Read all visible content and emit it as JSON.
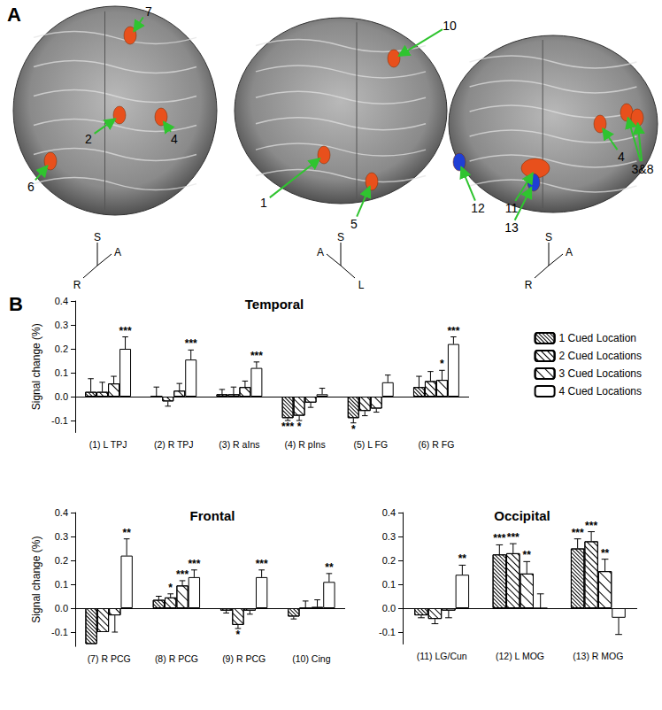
{
  "panel_a": {
    "label": "A",
    "views": [
      {
        "regions": [
          {
            "label": "7",
            "color": "#e8501c"
          },
          {
            "label": "2",
            "color": "#e8501c"
          },
          {
            "label": "4",
            "color": "#e8501c"
          },
          {
            "label": "6",
            "color": "#e8501c"
          }
        ],
        "axes": [
          "S",
          "A",
          "R"
        ]
      },
      {
        "regions": [
          {
            "label": "10",
            "color": "#e8501c"
          },
          {
            "label": "1",
            "color": "#e8501c"
          },
          {
            "label": "5",
            "color": "#e8501c"
          }
        ],
        "axes": [
          "S",
          "A",
          "L"
        ]
      },
      {
        "regions": [
          {
            "label": "12",
            "color": "#1f3fd4"
          },
          {
            "label": "11",
            "color": "#e8501c"
          },
          {
            "label": "13",
            "color": "#1f3fd4"
          },
          {
            "label": "4",
            "color": "#e8501c"
          },
          {
            "label": "3&8",
            "color": "#e8501c"
          }
        ],
        "axes": [
          "S",
          "A",
          "R"
        ]
      }
    ]
  },
  "panel_b_label": "B",
  "chart_data": [
    {
      "type": "bar",
      "title": "Temporal",
      "y_label": "Signal change (%)",
      "categories": [
        "(1) L TPJ",
        "(2) R TPJ",
        "(3) R aIns",
        "(4) R pIns",
        "(5) L FG",
        "(6) R FG"
      ],
      "series": [
        {
          "name": "1 Cued Location",
          "color": "#ffffff",
          "values": [
            0.02,
            0.0,
            0.01,
            -0.09,
            -0.09,
            0.04
          ],
          "errors": [
            0.055,
            0.04,
            0.02,
            0.01,
            0.02,
            0.045
          ],
          "significance": [
            null,
            null,
            null,
            "***",
            "*",
            null
          ]
        },
        {
          "name": "2 Cued Locations",
          "color": "#ffffff",
          "values": [
            0.02,
            -0.02,
            0.01,
            -0.08,
            -0.06,
            0.065
          ],
          "errors": [
            0.04,
            0.02,
            0.03,
            0.02,
            0.02,
            0.04
          ],
          "significance": [
            null,
            null,
            null,
            "*",
            null,
            null
          ]
        },
        {
          "name": "3 Cued Locations",
          "color": "#ffffff",
          "values": [
            0.055,
            0.025,
            0.04,
            -0.025,
            -0.05,
            0.07
          ],
          "errors": [
            0.03,
            0.03,
            0.025,
            0.02,
            0.015,
            0.04
          ],
          "significance": [
            null,
            null,
            null,
            null,
            null,
            "*"
          ]
        },
        {
          "name": "4 Cued Locations",
          "color": "#ffffff",
          "values": [
            0.2,
            0.155,
            0.12,
            0.01,
            0.06,
            0.22
          ],
          "errors": [
            0.05,
            0.04,
            0.025,
            0.025,
            0.03,
            0.03
          ],
          "significance": [
            "***",
            "***",
            "***",
            null,
            null,
            "***"
          ]
        }
      ],
      "ylim": [
        -0.15,
        0.4
      ],
      "yticks": [
        -0.1,
        {
          "value": 0,
          "label": "0.0"
        },
        0.1,
        0.2,
        0.3,
        0.4
      ],
      "legend": "right"
    },
    {
      "type": "bar",
      "title": "Frontal",
      "y_label": "Signal change (%)",
      "categories": [
        "(7) R PCG",
        "(8) R PCG",
        "(9) R PCG",
        "(10) Cing"
      ],
      "series": [
        {
          "name": "1 Cued Location",
          "color": "#ffffff",
          "values": [
            -0.15,
            0.035,
            -0.01,
            -0.035
          ],
          "errors": [
            null,
            0.015,
            0.01,
            0.01
          ],
          "significance": [
            null,
            null,
            null,
            null
          ]
        },
        {
          "name": "2 Cued Locations",
          "color": "#ffffff",
          "values": [
            -0.1,
            0.045,
            -0.07,
            0.0
          ],
          "errors": [
            null,
            0.015,
            0.015,
            0.03
          ],
          "significance": [
            null,
            "*",
            "*",
            null
          ]
        },
        {
          "name": "3 Cued Locations",
          "color": "#ffffff",
          "values": [
            -0.03,
            0.095,
            -0.01,
            0.005
          ],
          "errors": [
            0.07,
            0.02,
            0.015,
            0.03
          ],
          "significance": [
            null,
            "***",
            null,
            null
          ]
        },
        {
          "name": "4 Cued Locations",
          "color": "#ffffff",
          "values": [
            0.22,
            0.13,
            0.13,
            0.11
          ],
          "errors": [
            0.07,
            0.03,
            0.03,
            0.035
          ],
          "significance": [
            "**",
            "***",
            "***",
            "**"
          ]
        }
      ],
      "ylim": [
        -0.16,
        0.4
      ],
      "yticks": [
        -0.1,
        {
          "value": 0,
          "label": "0.0"
        },
        0.1,
        0.2,
        0.3,
        0.4
      ]
    },
    {
      "type": "bar",
      "title": "Occipital",
      "categories": [
        "(11) LG/Cun",
        "(12) L MOG",
        "(13) R MOG"
      ],
      "series": [
        {
          "name": "1 Cued Location",
          "color": "#ffffff",
          "values": [
            -0.03,
            0.225,
            0.25
          ],
          "errors": [
            0.01,
            0.04,
            0.04
          ],
          "significance": [
            null,
            "***",
            "***"
          ]
        },
        {
          "name": "2 Cued Locations",
          "color": "#ffffff",
          "values": [
            -0.045,
            0.23,
            0.28
          ],
          "errors": [
            0.02,
            0.04,
            0.04
          ],
          "significance": [
            null,
            "***",
            "***"
          ]
        },
        {
          "name": "3 Cued Locations",
          "color": "#ffffff",
          "values": [
            -0.01,
            0.145,
            0.155
          ],
          "errors": [
            0.03,
            0.05,
            0.05
          ],
          "significance": [
            null,
            "**",
            "**"
          ]
        },
        {
          "name": "4 Cued Locations",
          "color": "#ffffff",
          "values": [
            0.14,
            0.0,
            -0.04
          ],
          "errors": [
            0.04,
            0.06,
            0.07
          ],
          "significance": [
            "**",
            null,
            null
          ]
        }
      ],
      "ylim": [
        -0.15,
        0.4
      ],
      "yticks": [
        -0.1,
        {
          "value": 0,
          "label": "0.0"
        },
        0.1,
        0.2,
        0.3,
        0.4
      ]
    }
  ]
}
